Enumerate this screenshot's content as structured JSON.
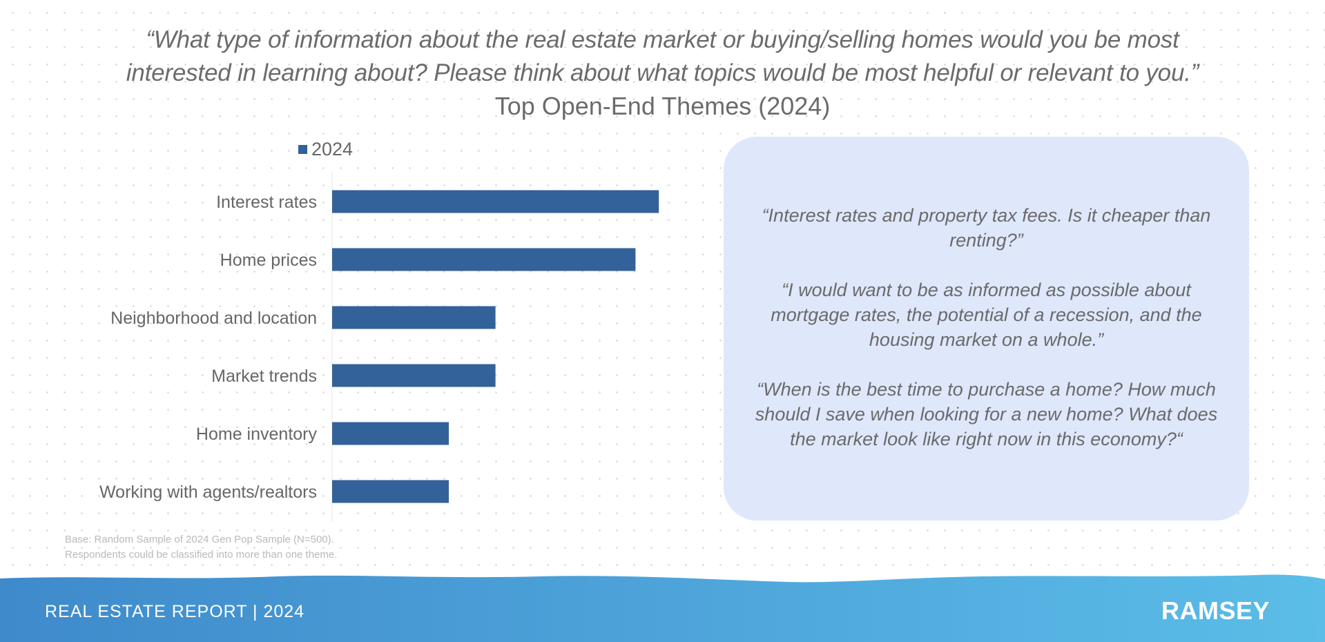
{
  "header": {
    "question_line1": "“What type of information about the real estate market or buying/selling homes would you be most",
    "question_line2": "interested in learning about? Please think about what topics would be most helpful or relevant to you.”",
    "subtitle": "Top Open-End Themes (2024)"
  },
  "chart_data": {
    "type": "bar",
    "orientation": "horizontal",
    "title": "Top Open-End Themes (2024)",
    "categories": [
      "Interest rates",
      "Home prices",
      "Neighborhood and location",
      "Market trends",
      "Home inventory",
      "Working with agents/realtors"
    ],
    "series": [
      {
        "name": "2024",
        "values": [
          28,
          26,
          14,
          14,
          10,
          10
        ],
        "color": "#336199"
      }
    ],
    "xlim": [
      0,
      40
    ],
    "grid": false,
    "legend": "top-left"
  },
  "quotes": [
    "“Interest rates and property tax fees. Is it cheaper than renting?”",
    "“I would want to be as informed as possible about mortgage rates, the potential of a recession, and the housing market on a whole.”",
    "“When is the best time to purchase a home? How much should I save when looking for a new home? What does the market look like right now in this economy?“"
  ],
  "notes": {
    "line1": "Base: Random Sample of 2024 Gen Pop Sample (N=500).",
    "line2": "Respondents could be classified into more than one theme."
  },
  "footer": {
    "left_text": "REAL ESTATE REPORT | 2024",
    "logo_text": "RAMSEY",
    "gradient_start": "#3f8acb",
    "gradient_end": "#5bbde8"
  }
}
